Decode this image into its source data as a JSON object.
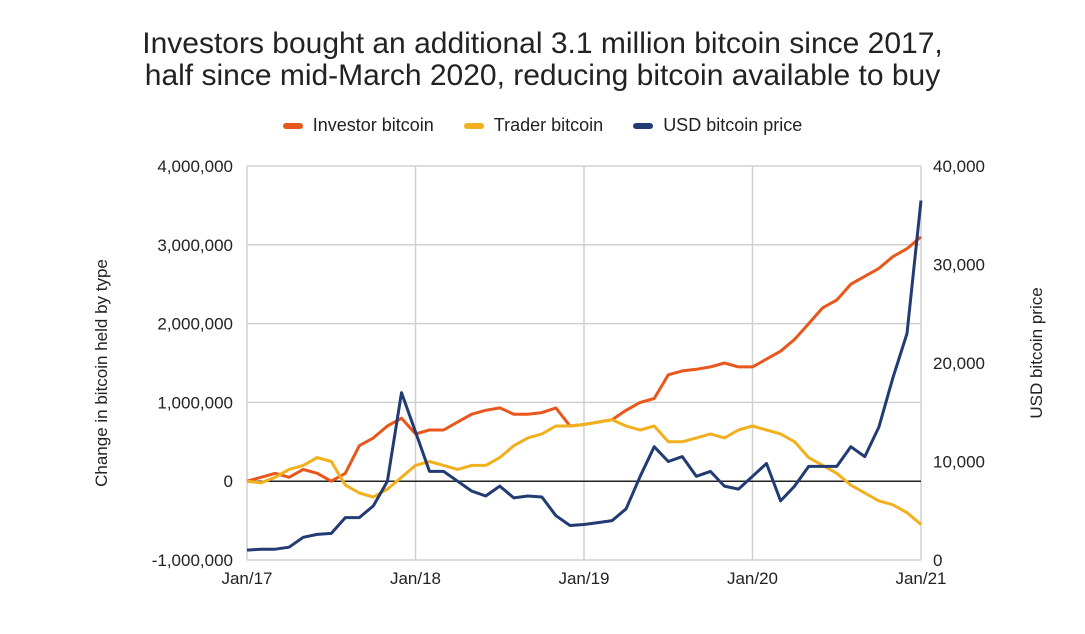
{
  "chart_data": {
    "type": "line",
    "title": "Investors bought an additional 3.1 million bitcoin since 2017,",
    "subtitle": "half since mid-March 2020, reducing bitcoin available to buy",
    "ylabel": "Change in bitcoin held by type",
    "y2label": "USD bitcoin price",
    "ylim": [
      -1000000,
      4000000
    ],
    "y2lim": [
      0,
      40000
    ],
    "yticks": [
      "4,000,000",
      "3,000,000",
      "2,000,000",
      "1,000,000",
      "0",
      "-1,000,000"
    ],
    "y2ticks": [
      "40,000",
      "30,000",
      "20,000",
      "10,000",
      "0"
    ],
    "xticks": [
      "Jan/17",
      "Jan/18",
      "Jan/19",
      "Jan/20",
      "Jan/21"
    ],
    "x_note": "monthly points Jan 2017 to Jan 2021",
    "grid": true,
    "legend_position": "top",
    "series": [
      {
        "name": "Investor bitcoin",
        "color": "#E8571B",
        "axis": "left",
        "values": [
          0,
          50000,
          100000,
          50000,
          150000,
          100000,
          0,
          100000,
          450000,
          550000,
          700000,
          800000,
          600000,
          650000,
          650000,
          750000,
          850000,
          900000,
          930000,
          850000,
          850000,
          870000,
          930000,
          700000,
          720000,
          750000,
          780000,
          900000,
          1000000,
          1050000,
          1350000,
          1400000,
          1420000,
          1450000,
          1500000,
          1450000,
          1450000,
          1550000,
          1650000,
          1800000,
          2000000,
          2200000,
          2300000,
          2500000,
          2600000,
          2700000,
          2850000,
          2950000,
          3100000
        ]
      },
      {
        "name": "Trader bitcoin",
        "color": "#F2B01E",
        "axis": "left",
        "values": [
          0,
          -20000,
          50000,
          150000,
          200000,
          300000,
          250000,
          -50000,
          -150000,
          -200000,
          -100000,
          50000,
          200000,
          250000,
          200000,
          150000,
          200000,
          200000,
          300000,
          450000,
          550000,
          600000,
          700000,
          700000,
          720000,
          750000,
          780000,
          700000,
          650000,
          700000,
          500000,
          500000,
          550000,
          600000,
          550000,
          650000,
          700000,
          650000,
          600000,
          500000,
          300000,
          200000,
          100000,
          -50000,
          -150000,
          -250000,
          -300000,
          -400000,
          -550000
        ]
      },
      {
        "name": "USD bitcoin price",
        "color": "#223B73",
        "axis": "right",
        "values": [
          1000,
          1100,
          1100,
          1300,
          2300,
          2600,
          2700,
          4300,
          4300,
          5500,
          8000,
          17000,
          13000,
          9000,
          9000,
          8000,
          7000,
          6500,
          7500,
          6300,
          6500,
          6400,
          4500,
          3500,
          3600,
          3800,
          4000,
          5200,
          8500,
          11500,
          10000,
          10500,
          8500,
          9000,
          7500,
          7200,
          8500,
          9800,
          6000,
          7500,
          9500,
          9500,
          9500,
          11500,
          10500,
          13500,
          18500,
          23000,
          36500
        ]
      }
    ]
  }
}
